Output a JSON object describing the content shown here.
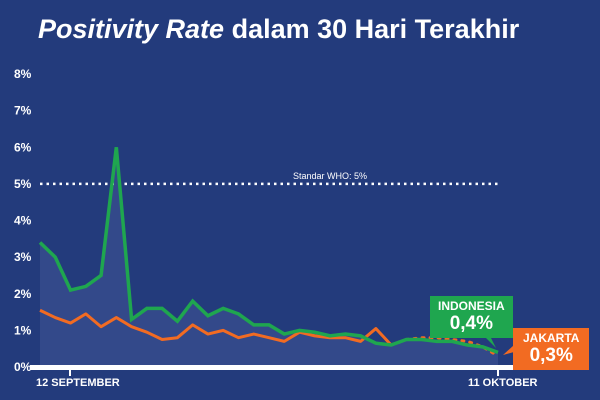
{
  "chart_data": {
    "type": "line",
    "title_italic": "Positivity Rate",
    "title_rest": "dalam 30 Hari Terakhir",
    "ylim": [
      0,
      8
    ],
    "yticks": [
      "0%",
      "1%",
      "2%",
      "3%",
      "4%",
      "5%",
      "6%",
      "7%",
      "8%"
    ],
    "xlabels": {
      "start": "12 SEPTEMBER",
      "end": "11 OKTOBER"
    },
    "reference": {
      "label": "Standar WHO: 5%",
      "value": 5
    },
    "series": [
      {
        "name": "INDONESIA",
        "color": "#1fa64f",
        "latest": "0,4%",
        "values": [
          3.4,
          3.0,
          2.1,
          2.2,
          2.5,
          6.0,
          1.3,
          1.6,
          1.6,
          1.25,
          1.8,
          1.4,
          1.6,
          1.45,
          1.15,
          1.15,
          0.9,
          1.0,
          0.95,
          0.85,
          0.9,
          0.85,
          0.65,
          0.6,
          0.75,
          0.75,
          0.7,
          0.7,
          0.6,
          0.55,
          0.4
        ]
      },
      {
        "name": "JAKARTA",
        "color": "#f26b22",
        "latest": "0,3%",
        "dotted_from": 23,
        "values": [
          1.55,
          1.35,
          1.2,
          1.45,
          1.1,
          1.35,
          1.1,
          0.95,
          0.75,
          0.8,
          1.15,
          0.9,
          1.0,
          0.8,
          0.9,
          0.8,
          0.7,
          0.95,
          0.85,
          0.8,
          0.8,
          0.7,
          1.05,
          0.6,
          0.75,
          0.8,
          0.8,
          0.75,
          0.7,
          0.55,
          0.3
        ]
      }
    ]
  }
}
